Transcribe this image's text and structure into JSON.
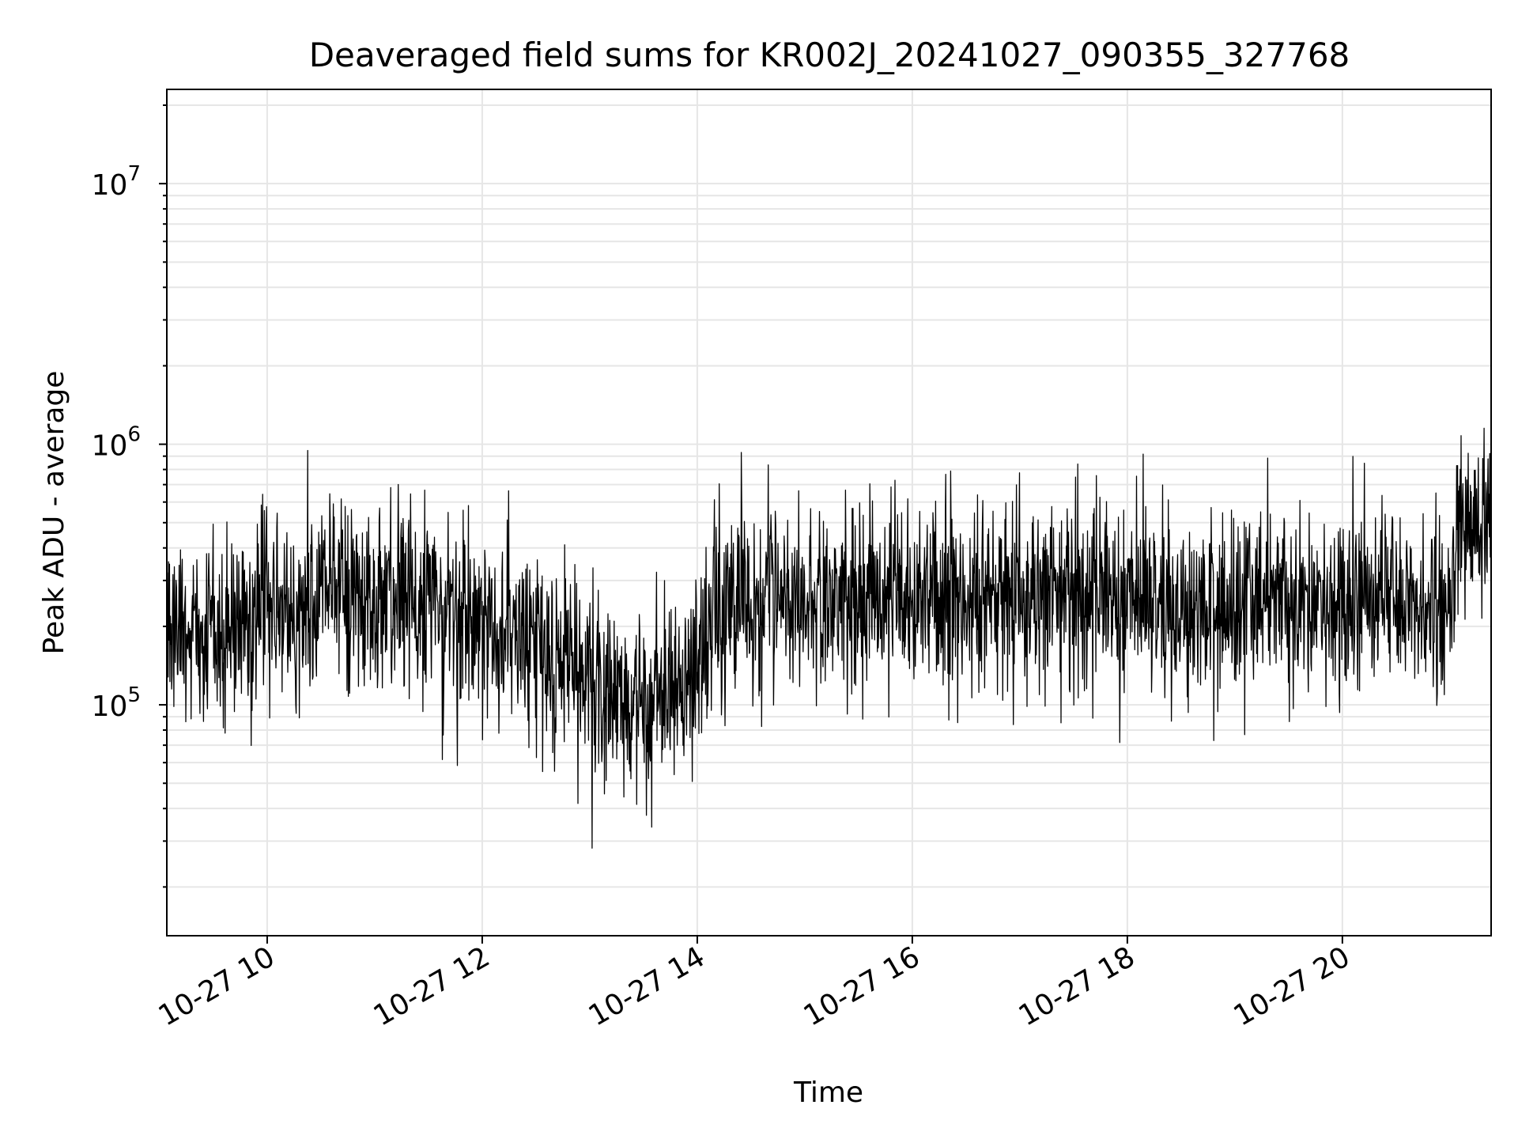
{
  "chart_data": {
    "type": "line",
    "title": "Deaveraged field sums for KR002J_20241027_090355_327768",
    "xlabel": "Time",
    "ylabel": "Peak ADU - average",
    "xlim": [
      "2024-10-27 09:04",
      "2024-10-27 21:23"
    ],
    "ylim": [
      13000,
      23000000
    ],
    "yscale": "log",
    "grid": true,
    "x_ticks": [
      "10-27 10",
      "10-27 12",
      "10-27 14",
      "10-27 16",
      "10-27 18",
      "10-27 20"
    ],
    "y_ticks": [
      {
        "base": "10",
        "exp": "5",
        "value": 100000
      },
      {
        "base": "10",
        "exp": "6",
        "value": 1000000
      },
      {
        "base": "10",
        "exp": "7",
        "value": 10000000
      }
    ],
    "line_color": "#000000",
    "grid_color": "#e6e6e6",
    "series": [
      {
        "x": [
          "2024-10-27 09:04",
          "2024-10-27 09:30",
          "2024-10-27 10:00",
          "2024-10-27 10:30",
          "2024-10-27 11:00",
          "2024-10-27 11:30",
          "2024-10-27 12:00",
          "2024-10-27 12:30",
          "2024-10-27 13:00",
          "2024-10-27 13:30",
          "2024-10-27 14:00",
          "2024-10-27 14:15",
          "2024-10-27 14:30",
          "2024-10-27 15:00",
          "2024-10-27 15:30",
          "2024-10-27 16:00",
          "2024-10-27 16:30",
          "2024-10-27 17:00",
          "2024-10-27 17:30",
          "2024-10-27 18:00",
          "2024-10-27 18:30",
          "2024-10-27 19:00",
          "2024-10-27 19:30",
          "2024-10-27 20:00",
          "2024-10-27 20:30",
          "2024-10-27 21:00",
          "2024-10-27 21:05",
          "2024-10-27 21:23"
        ],
        "y": [
          200000,
          190000,
          230000,
          270000,
          260000,
          240000,
          200000,
          190000,
          110000,
          100000,
          130000,
          260000,
          250000,
          240000,
          250000,
          270000,
          260000,
          260000,
          250000,
          260000,
          250000,
          250000,
          250000,
          245000,
          250000,
          230000,
          500000,
          550000
        ]
      }
    ]
  }
}
